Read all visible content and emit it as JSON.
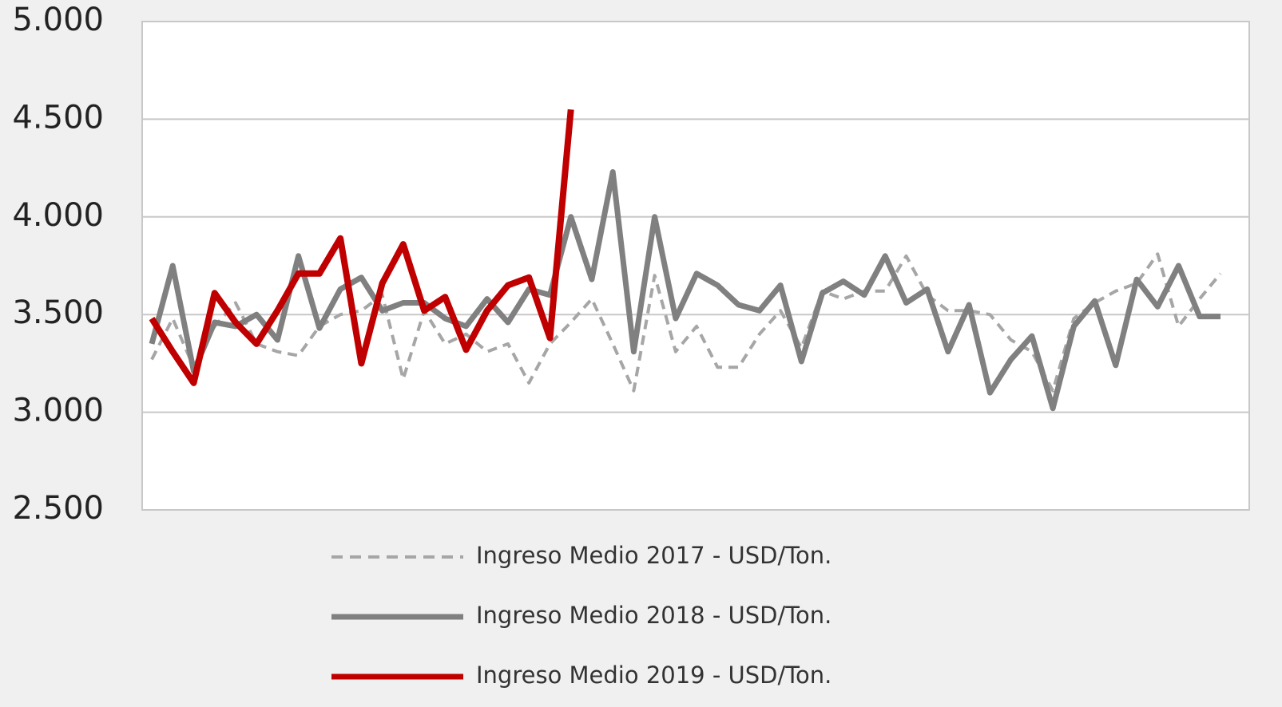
{
  "chart_data": {
    "type": "line",
    "categories": [
      null,
      null,
      null,
      null,
      null,
      null,
      null,
      null,
      null,
      null,
      null,
      null,
      null,
      null,
      null,
      null,
      null,
      null,
      null,
      null,
      null,
      null,
      null,
      null,
      null,
      null,
      null,
      null,
      null,
      null,
      null,
      null,
      null,
      null,
      null,
      null,
      null,
      null,
      null,
      null,
      null,
      null,
      null,
      null,
      null,
      null,
      null,
      null,
      null,
      null,
      null,
      null
    ],
    "series": [
      {
        "name": "Ingreso Medio 2017 - USD/Ton.",
        "color": "#a6a6a6",
        "dash": true,
        "values": [
          3270,
          3480,
          3230,
          3440,
          3560,
          3350,
          3310,
          3290,
          3440,
          3500,
          3520,
          3600,
          3170,
          3520,
          3350,
          3400,
          3310,
          3350,
          3150,
          3350,
          3460,
          3580,
          3350,
          3110,
          3700,
          3310,
          3440,
          3230,
          3230,
          3400,
          3520,
          3330,
          3620,
          3580,
          3620,
          3620,
          3800,
          3600,
          3520,
          3520,
          3500,
          3370,
          3310,
          3110,
          3480,
          3560,
          3620,
          3660,
          3810,
          3440,
          3580,
          3710
        ]
      },
      {
        "name": "Ingreso Medio 2018 - USD/Ton.",
        "color": "#808080",
        "dash": false,
        "values": [
          3350,
          3750,
          3210,
          3460,
          3440,
          3500,
          3370,
          3800,
          3430,
          3630,
          3690,
          3520,
          3560,
          3560,
          3480,
          3440,
          3580,
          3460,
          3630,
          3600,
          4000,
          3680,
          4230,
          3310,
          4000,
          3480,
          3710,
          3650,
          3550,
          3520,
          3650,
          3260,
          3610,
          3670,
          3600,
          3800,
          3560,
          3630,
          3310,
          3550,
          3100,
          3270,
          3390,
          3020,
          3440,
          3570,
          3240,
          3680,
          3540,
          3750,
          3490,
          3490
        ]
      },
      {
        "name": "Ingreso Medio 2019 - USD/Ton.",
        "color": "#c00000",
        "dash": false,
        "values": [
          3480,
          3310,
          3150,
          3610,
          3460,
          3350,
          3520,
          3710,
          3710,
          3890,
          3250,
          3660,
          3860,
          3520,
          3590,
          3320,
          3520,
          3650,
          3690,
          3380,
          4550,
          null,
          null,
          null,
          null,
          null,
          null,
          null,
          null,
          null,
          null,
          null,
          null,
          null,
          null,
          null,
          null,
          null,
          null,
          null,
          null,
          null,
          null,
          null,
          null,
          null,
          null,
          null,
          null,
          null,
          null,
          null
        ]
      }
    ],
    "ylim": [
      2500,
      5000
    ],
    "yticks": [
      {
        "value": 2500,
        "label": "2.500"
      },
      {
        "value": 3000,
        "label": "3.000"
      },
      {
        "value": 3500,
        "label": "3.500"
      },
      {
        "value": 4000,
        "label": "4.000"
      },
      {
        "value": 4500,
        "label": "4.500"
      },
      {
        "value": 5000,
        "label": "5.000"
      }
    ],
    "grid": true,
    "legend": "bottom"
  }
}
